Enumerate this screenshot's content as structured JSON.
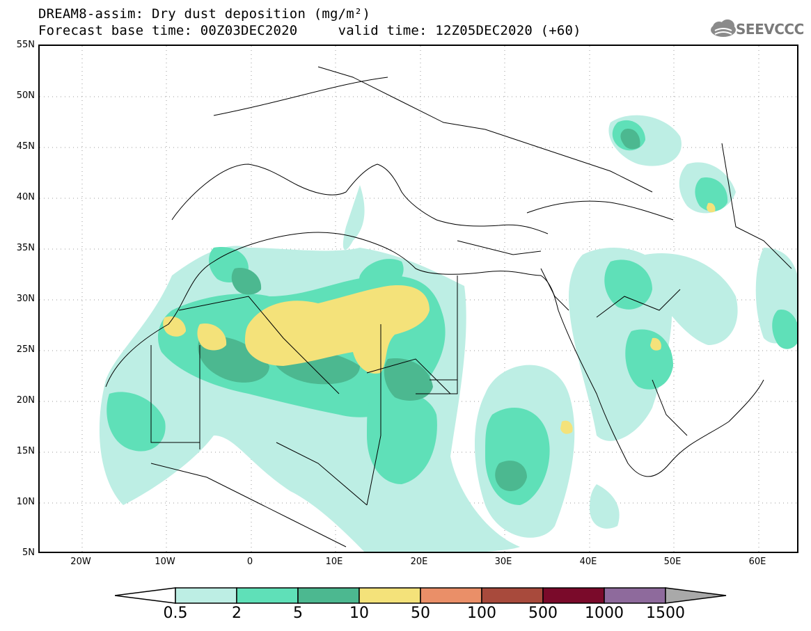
{
  "title": {
    "line1": "DREAM8-assim: Dry dust deposition (mg/m²)",
    "line2": "Forecast base time: 00Z03DEC2020     valid time: 12Z05DEC2020 (+60)"
  },
  "logo": {
    "text": "SEEVCCC",
    "icon": "cloud-icon"
  },
  "axes": {
    "lat_labels": [
      "55N",
      "50N",
      "45N",
      "40N",
      "35N",
      "30N",
      "25N",
      "20N",
      "15N",
      "10N",
      "5N"
    ],
    "lon_labels": [
      "20W",
      "10W",
      "0",
      "10E",
      "20E",
      "30E",
      "40E",
      "50E",
      "60E"
    ],
    "lat_range": [
      5,
      55
    ],
    "lon_range": [
      -25,
      65
    ]
  },
  "colorbar": {
    "labels": [
      "0.5",
      "2",
      "5",
      "10",
      "50",
      "100",
      "500",
      "1000",
      "1500"
    ],
    "colors": [
      "#bdeee4",
      "#5fe0b8",
      "#4cb890",
      "#f4e27a",
      "#ea8f68",
      "#a84a3c",
      "#7a0a2a",
      "#8e6a9c",
      "#a9a9a9"
    ],
    "left_arrow_color": "#ffffff"
  },
  "map_colors": {
    "level1": "#bdeee4",
    "level2": "#5fe0b8",
    "level3": "#4cb890",
    "level4": "#f4e27a"
  }
}
